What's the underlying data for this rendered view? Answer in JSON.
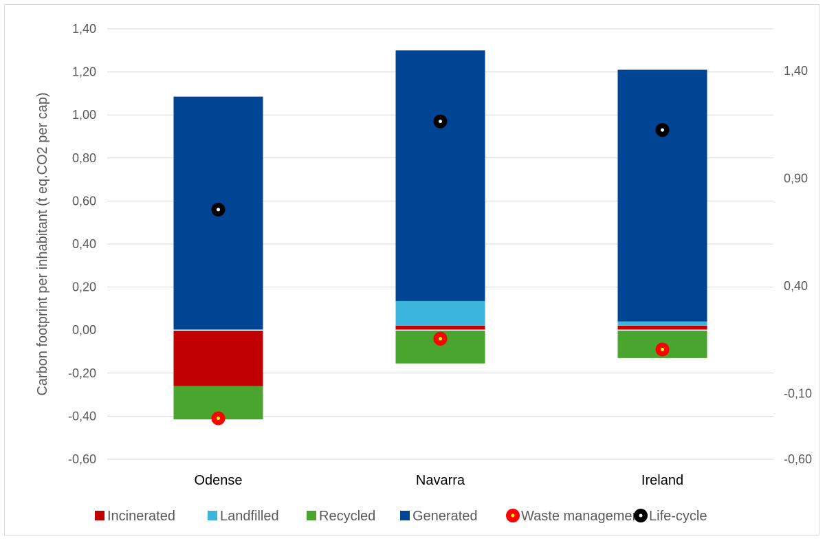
{
  "chart_data": {
    "type": "bar",
    "stacked": true,
    "categories": [
      "Odense",
      "Navarra",
      "Ireland"
    ],
    "ylabel": "Carbon footprint per inhabitant (t eq.CO2 per cap)",
    "ylim": [
      -0.6,
      1.4
    ],
    "y_ticks": [
      "1,40",
      "1,20",
      "1,00",
      "0,80",
      "0,60",
      "0,40",
      "0,20",
      "0,00",
      "-0,20",
      "-0,40",
      "-0,60"
    ],
    "y2lim": [
      -0.6,
      1.4
    ],
    "y2_ticks": [
      "1,40",
      "0,90",
      "0,40",
      "-0,10",
      "-0,60"
    ],
    "grid": true,
    "legend_position": "bottom",
    "series": [
      {
        "name": "Incinerated",
        "color": "#c00000",
        "values": [
          -0.26,
          0.02,
          0.02
        ]
      },
      {
        "name": "Landfilled",
        "color": "#3bb5dc",
        "values": [
          0.0,
          0.115,
          0.02
        ]
      },
      {
        "name": "Recycled",
        "color": "#4aa52e",
        "values": [
          -0.155,
          -0.155,
          -0.13
        ]
      },
      {
        "name": "Generated",
        "color": "#004494",
        "values": [
          1.085,
          1.165,
          1.17
        ]
      }
    ],
    "markers": [
      {
        "name": "Waste management",
        "color": "#ff0000",
        "center": "#ffff00",
        "values": [
          -0.41,
          -0.04,
          -0.09
        ]
      },
      {
        "name": "Life-cycle",
        "color": "#000000",
        "center": "#ffffff",
        "values": [
          0.56,
          0.97,
          0.93
        ]
      }
    ]
  }
}
